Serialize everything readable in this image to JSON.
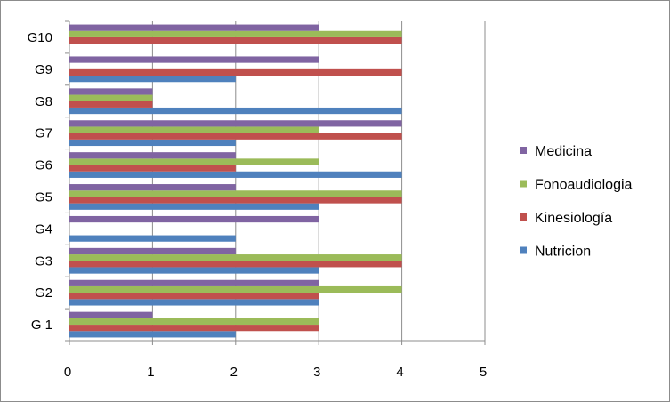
{
  "chart_data": {
    "type": "bar",
    "orientation": "horizontal",
    "categories": [
      "G 1",
      "G2",
      "G3",
      "G4",
      "G5",
      "G6",
      "G7",
      "G8",
      "G9",
      "G10"
    ],
    "series": [
      {
        "name": "Nutricion",
        "color": "#4f81bd",
        "values": [
          2,
          3,
          3,
          2,
          3,
          4,
          2,
          4,
          2,
          0
        ]
      },
      {
        "name": "Kinesiología",
        "color": "#c0504d",
        "values": [
          3,
          3,
          4,
          0,
          4,
          2,
          4,
          1,
          4,
          4
        ]
      },
      {
        "name": "Fonoaudiologia",
        "color": "#9bbb59",
        "values": [
          3,
          4,
          4,
          0,
          4,
          3,
          3,
          1,
          0,
          4
        ]
      },
      {
        "name": "Medicina",
        "color": "#8064a2",
        "values": [
          1,
          3,
          2,
          3,
          2,
          2,
          4,
          1,
          3,
          3
        ]
      }
    ],
    "xlim": [
      0,
      5
    ],
    "xticks": [
      "0",
      "1",
      "2",
      "3",
      "4",
      "5"
    ],
    "grid": "vertical",
    "legend_position": "right",
    "legend_order": [
      "Medicina",
      "Fonoaudiologia",
      "Kinesiología",
      "Nutricion"
    ],
    "title": "",
    "xlabel": "",
    "ylabel": ""
  }
}
